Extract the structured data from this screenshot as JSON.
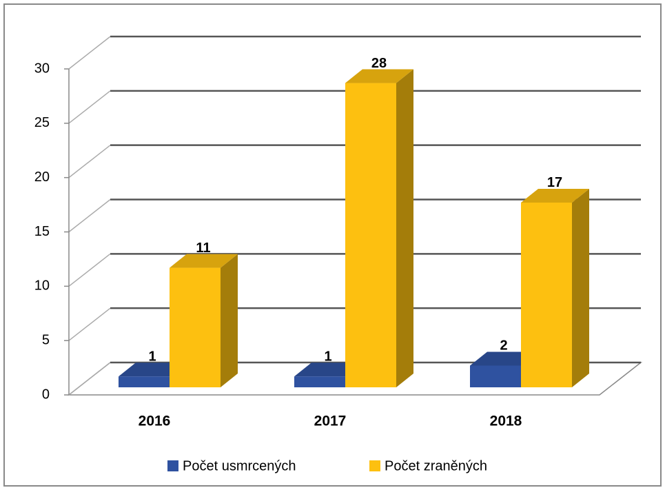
{
  "chart_data": {
    "type": "bar",
    "categories": [
      "2016",
      "2017",
      "2018"
    ],
    "series": [
      {
        "name": "Počet usmrcených",
        "color": "#2f52a0",
        "values": [
          1,
          1,
          2
        ]
      },
      {
        "name": "Počet zraněných",
        "color": "#fdc010",
        "values": [
          11,
          28,
          17
        ]
      }
    ],
    "ylim": [
      0,
      30
    ],
    "yticks": [
      0,
      5,
      10,
      15,
      20,
      25,
      30
    ],
    "grid": true,
    "legend": "bottom"
  }
}
